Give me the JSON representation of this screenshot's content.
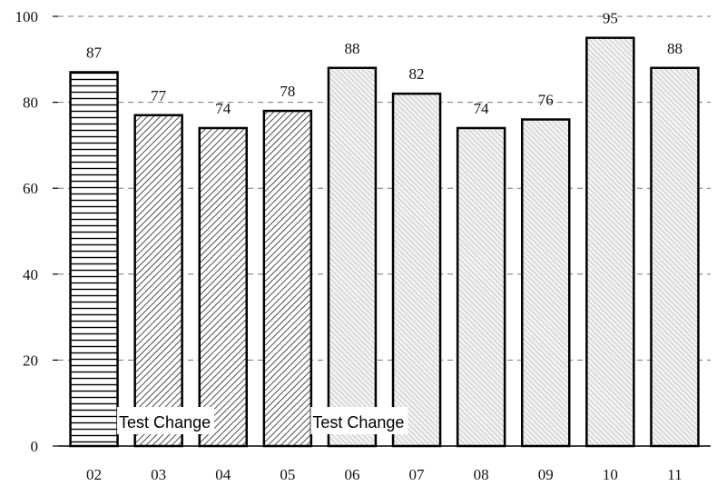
{
  "chart_data": {
    "type": "bar",
    "categories": [
      "02",
      "03",
      "04",
      "05",
      "06",
      "07",
      "08",
      "09",
      "10",
      "11"
    ],
    "values": [
      87,
      77,
      74,
      78,
      88,
      82,
      74,
      76,
      95,
      88
    ],
    "ylim": [
      0,
      100
    ],
    "yticks": [
      0,
      20,
      40,
      60,
      80,
      100
    ],
    "grid": "horizontal dashed",
    "bar_patterns": [
      "horizontal-lines",
      "dense-diagonal",
      "dense-diagonal",
      "dense-diagonal",
      "fine-diagonal",
      "fine-diagonal",
      "fine-diagonal",
      "fine-diagonal",
      "fine-diagonal",
      "fine-diagonal"
    ],
    "annotations": [
      {
        "text": "Test Change",
        "after_category": "02"
      },
      {
        "text": "Test Change",
        "after_category": "05"
      }
    ]
  }
}
